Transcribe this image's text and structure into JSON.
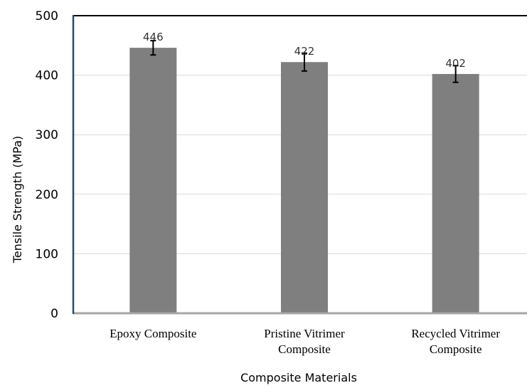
{
  "chart_data": {
    "type": "bar",
    "title": "",
    "xlabel": "Composite Materials",
    "ylabel": "Tensile Strength (MPa)",
    "ylim": [
      0,
      500
    ],
    "yticks": [
      0,
      100,
      200,
      300,
      400,
      500
    ],
    "ytick_labels": [
      "0",
      "100",
      "200",
      "300",
      "400",
      "500"
    ],
    "grid": "horizontal",
    "categories": [
      [
        "Epoxy Composite"
      ],
      [
        "Pristine Vitrimer",
        "Composite"
      ],
      [
        "Recycled Vitrimer",
        "Composite"
      ]
    ],
    "values": [
      446,
      422,
      402
    ],
    "value_labels": [
      "446",
      "422",
      "402"
    ],
    "error": [
      12,
      15,
      14
    ],
    "colors": {
      "bar": "#7f7f7f",
      "grid": "#d9d9d9",
      "left_axis": "#1f4e79",
      "top_border": "#000000",
      "baseline": "#a6a6a6",
      "error_bar": "#000000"
    }
  }
}
